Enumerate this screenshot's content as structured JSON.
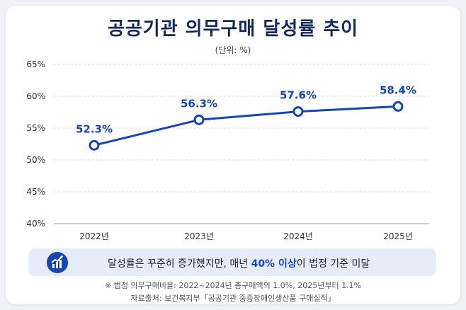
{
  "title": "공공기관 의무구매 달성률 추이",
  "unit_label": "(단위: %)",
  "chart_data": {
    "type": "line",
    "title": "공공기관 의무구매 달성률 추이",
    "categories": [
      "2022년",
      "2023년",
      "2024년",
      "2025년"
    ],
    "series": [
      {
        "values": [
          52.3,
          56.3,
          57.6,
          58.4
        ],
        "data_labels": [
          "52.3%",
          "56.3%",
          "57.6%",
          "58.4%"
        ]
      }
    ],
    "y_ticks": [
      40,
      45,
      50,
      55,
      60,
      65
    ],
    "y_tick_labels": [
      "40%",
      "45%",
      "50%",
      "55%",
      "60%",
      "65%"
    ],
    "ylim": [
      40,
      65
    ],
    "grid": true,
    "xlabel": "",
    "ylabel": ""
  },
  "callout": {
    "text_before": "달성률은 꾸준히 증가했지만, 매년 ",
    "highlight": "40% 이상",
    "text_after": "이 법정 기준 미달",
    "icon": "growth-chart-icon"
  },
  "footnote": "※ 법정 의무구매비율: 2022~2024년 총구매액의 1.0%, 2025년부터 1.1%",
  "source": "자료출처: 보건복지부「공공기관 중증장애인생산품 구매실적」",
  "colors": {
    "line": "#1646b4",
    "title": "#14285a",
    "callout_bg": "#e6ecf8",
    "grid": "#d9dce3"
  }
}
